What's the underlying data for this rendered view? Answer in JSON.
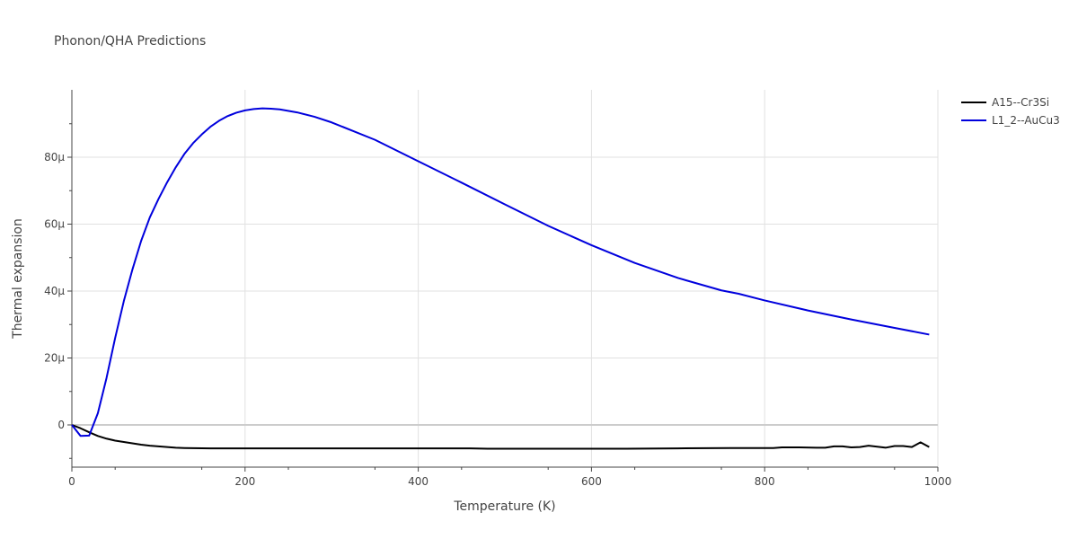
{
  "chart_data": {
    "type": "line",
    "title": "Phonon/QHA Predictions",
    "xlabel": "Temperature (K)",
    "ylabel": "Thermal expansion",
    "xlim": [
      0,
      1000
    ],
    "ylim": [
      -12,
      100
    ],
    "x_ticks": [
      {
        "value": 0,
        "label": "0"
      },
      {
        "value": 200,
        "label": "200"
      },
      {
        "value": 400,
        "label": "400"
      },
      {
        "value": 600,
        "label": "600"
      },
      {
        "value": 800,
        "label": "800"
      },
      {
        "value": 1000,
        "label": "1000"
      }
    ],
    "y_ticks": [
      {
        "value": 0,
        "label": "0"
      },
      {
        "value": 20,
        "label": "20μ"
      },
      {
        "value": 40,
        "label": "40μ"
      },
      {
        "value": 60,
        "label": "60μ"
      },
      {
        "value": 80,
        "label": "80μ"
      }
    ],
    "grid": true,
    "legend_position": "top-right",
    "series": [
      {
        "name": "A15--Cr3Si",
        "color": "#000000",
        "points": [
          [
            0,
            0
          ],
          [
            10,
            -1
          ],
          [
            20,
            -2.2
          ],
          [
            30,
            -3.3
          ],
          [
            40,
            -4.1
          ],
          [
            50,
            -4.7
          ],
          [
            60,
            -5.1
          ],
          [
            70,
            -5.5
          ],
          [
            80,
            -5.9
          ],
          [
            90,
            -6.2
          ],
          [
            100,
            -6.4
          ],
          [
            110,
            -6.6
          ],
          [
            120,
            -6.8
          ],
          [
            130,
            -6.9
          ],
          [
            140,
            -6.95
          ],
          [
            160,
            -7.0
          ],
          [
            180,
            -7.0
          ],
          [
            200,
            -7.0
          ],
          [
            250,
            -7.0
          ],
          [
            300,
            -7.0
          ],
          [
            350,
            -7.0
          ],
          [
            400,
            -7.0
          ],
          [
            460,
            -7.0
          ],
          [
            480,
            -7.1
          ],
          [
            520,
            -7.1
          ],
          [
            560,
            -7.1
          ],
          [
            620,
            -7.1
          ],
          [
            640,
            -7.1
          ],
          [
            700,
            -7.0
          ],
          [
            760,
            -6.9
          ],
          [
            800,
            -6.9
          ],
          [
            810,
            -6.9
          ],
          [
            820,
            -6.7
          ],
          [
            840,
            -6.7
          ],
          [
            860,
            -6.8
          ],
          [
            870,
            -6.8
          ],
          [
            880,
            -6.4
          ],
          [
            890,
            -6.4
          ],
          [
            900,
            -6.7
          ],
          [
            910,
            -6.6
          ],
          [
            920,
            -6.2
          ],
          [
            930,
            -6.5
          ],
          [
            940,
            -6.8
          ],
          [
            950,
            -6.3
          ],
          [
            960,
            -6.3
          ],
          [
            970,
            -6.6
          ],
          [
            980,
            -5.2
          ],
          [
            990,
            -6.6
          ]
        ]
      },
      {
        "name": "L1_2--AuCu3",
        "color": "#0000dd",
        "points": [
          [
            0,
            0
          ],
          [
            10,
            -3.3
          ],
          [
            20,
            -3.2
          ],
          [
            30,
            3.5
          ],
          [
            40,
            14
          ],
          [
            50,
            26
          ],
          [
            60,
            37
          ],
          [
            70,
            46.5
          ],
          [
            80,
            55
          ],
          [
            90,
            62
          ],
          [
            100,
            67.5
          ],
          [
            110,
            72.5
          ],
          [
            120,
            77
          ],
          [
            130,
            81
          ],
          [
            140,
            84.2
          ],
          [
            150,
            86.8
          ],
          [
            160,
            89.1
          ],
          [
            170,
            90.9
          ],
          [
            180,
            92.3
          ],
          [
            190,
            93.3
          ],
          [
            200,
            94.0
          ],
          [
            210,
            94.4
          ],
          [
            220,
            94.6
          ],
          [
            230,
            94.5
          ],
          [
            240,
            94.3
          ],
          [
            260,
            93.4
          ],
          [
            280,
            92.1
          ],
          [
            300,
            90.4
          ],
          [
            350,
            85.2
          ],
          [
            400,
            78.8
          ],
          [
            450,
            72.4
          ],
          [
            500,
            65.9
          ],
          [
            550,
            59.5
          ],
          [
            600,
            53.7
          ],
          [
            650,
            48.4
          ],
          [
            700,
            43.9
          ],
          [
            750,
            40.2
          ],
          [
            770,
            39.2
          ],
          [
            800,
            37.2
          ],
          [
            850,
            34.2
          ],
          [
            900,
            31.5
          ],
          [
            950,
            29.0
          ],
          [
            990,
            27.0
          ]
        ]
      }
    ]
  }
}
